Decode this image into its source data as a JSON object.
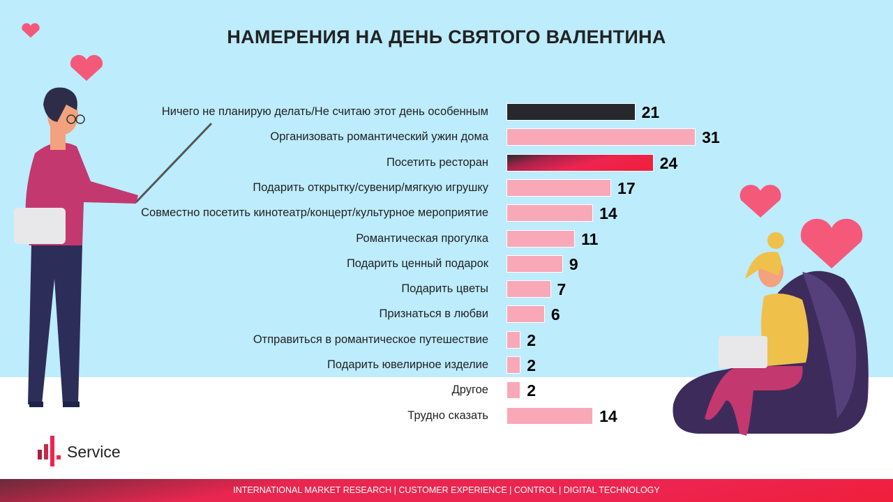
{
  "title": "НАМЕРЕНИЯ НА ДЕНЬ СВЯТОГО ВАЛЕНТИНА",
  "chart_data": {
    "type": "bar",
    "orientation": "horizontal",
    "title": "НАМЕРЕНИЯ НА ДЕНЬ СВЯТОГО ВАЛЕНТИНА",
    "categories": [
      "Ничего не планирую  делать/Не считаю этот день особенным",
      "Организовать романтический ужин дома",
      "Посетить ресторан",
      "Подарить открытку/сувенир/мягкую игрушку",
      "Совместно посетить кинотеатр/концерт/культурное мероприятие",
      "Романтическая прогулка",
      "Подарить ценный подарок",
      "Подарить цветы",
      "Признаться в любви",
      "Отправиться в романтическое путешествие",
      "Подарить ювелирное изделие",
      "Другое",
      "Трудно сказать"
    ],
    "values": [
      21,
      31,
      24,
      17,
      14,
      11,
      9,
      7,
      6,
      2,
      2,
      2,
      14
    ],
    "bar_styles": [
      "dark",
      "pink",
      "red",
      "pink",
      "pink",
      "pink",
      "pink",
      "pink",
      "pink",
      "pink",
      "pink",
      "pink",
      "pink"
    ],
    "colors": {
      "dark": "#27282d",
      "pink": "#f9a8b8",
      "red": "#ee2450"
    }
  },
  "logo": {
    "text": "Service"
  },
  "footer": "INTERNATIONAL MARKET RESEARCH  |  CUSTOMER EXPERIENCE   | CONTROL  | DIGITAL TECHNOLOGY"
}
